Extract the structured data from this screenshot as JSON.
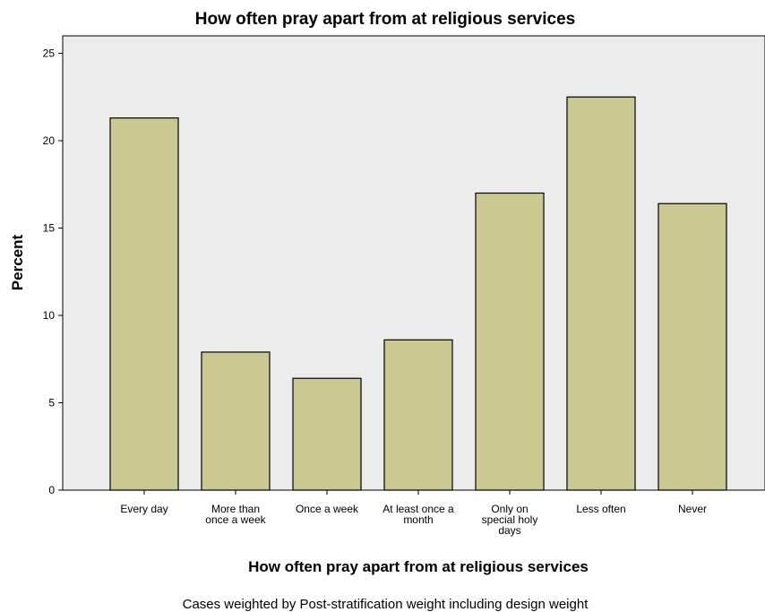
{
  "chart_data": {
    "type": "bar",
    "title": "How often pray apart from at religious services",
    "xlabel": "How often pray apart from at religious services",
    "ylabel": "Percent",
    "categories": [
      [
        "Every day"
      ],
      [
        "More than",
        "once a week"
      ],
      [
        "Once a week"
      ],
      [
        "At least once a",
        "month"
      ],
      [
        "Only on",
        "special holy",
        "days"
      ],
      [
        "Less often"
      ],
      [
        "Never"
      ]
    ],
    "values": [
      21.3,
      7.9,
      6.4,
      8.6,
      17.0,
      22.5,
      16.4
    ],
    "ylim": [
      0,
      26
    ],
    "yticks": [
      0,
      5,
      10,
      15,
      20,
      25
    ],
    "grid": false,
    "colors": {
      "bar_fill": "#cbc891",
      "bar_stroke": "#000000",
      "plot_background": "#ececec"
    }
  },
  "footnote": "Cases weighted by Post-stratification weight including design weight"
}
